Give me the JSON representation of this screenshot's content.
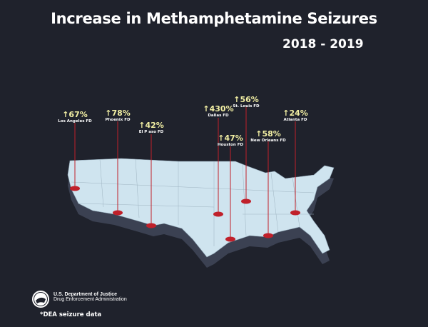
{
  "title": "Increase in Methamphetamine Seizures",
  "years": "2018 - 2019",
  "colors": {
    "background": "#1f222c",
    "map_fill": "#cfe4ef",
    "map_side": "#3b4152",
    "marker": "#c0202a",
    "percent": "#f3f0a4"
  },
  "markers": [
    {
      "pct": "↑67%",
      "name": "Los Angeles FD"
    },
    {
      "pct": "↑78%",
      "name": "Phoenix FD"
    },
    {
      "pct": "↑42%",
      "name": "El P aso FD"
    },
    {
      "pct": "↑430%",
      "name": "Dallas FD"
    },
    {
      "pct": "↑47%",
      "name": "Houston FD"
    },
    {
      "pct": "↑56%",
      "name": "St. Louis FD"
    },
    {
      "pct": "↑58%",
      "name": "New Orleans FD"
    },
    {
      "pct": "↑24%",
      "name": "Atlanta FD"
    }
  ],
  "footer": {
    "dept": "U.S. Department of Justice",
    "agency": "Drug Enforcement Administration",
    "note": "*DEA seizure data"
  }
}
